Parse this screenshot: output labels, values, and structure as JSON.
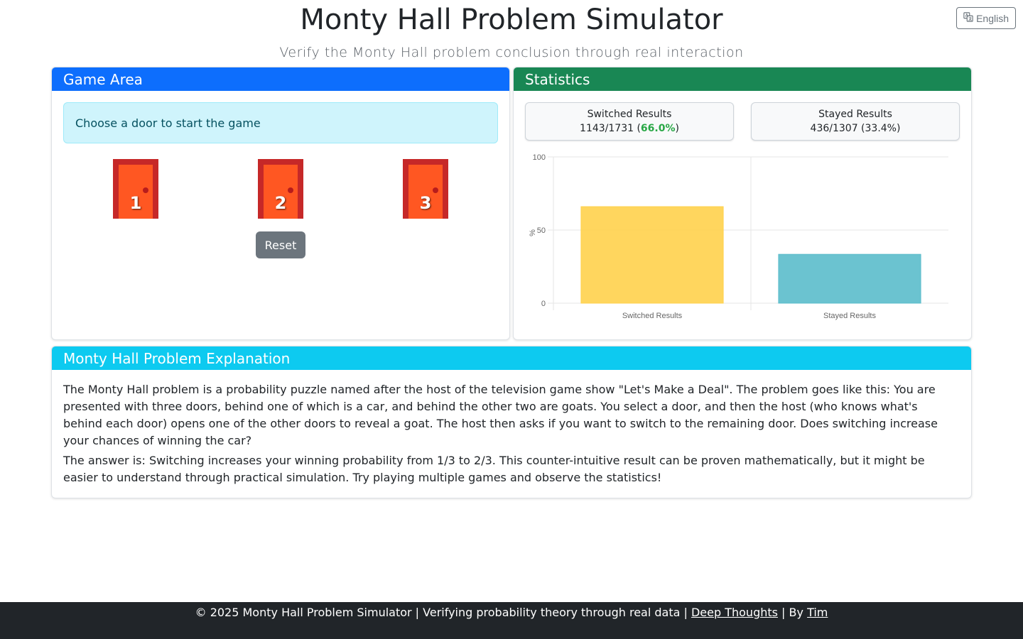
{
  "language_button": {
    "label": "English",
    "icon": "translate-icon"
  },
  "header": {
    "title": "Monty Hall Problem Simulator",
    "subtitle": "Verify the Monty Hall problem conclusion through real interaction"
  },
  "game": {
    "title": "Game Area",
    "status": "Choose a door to start the game",
    "doors": [
      {
        "number": "1"
      },
      {
        "number": "2"
      },
      {
        "number": "3"
      }
    ],
    "reset_label": "Reset"
  },
  "statistics": {
    "title": "Statistics",
    "switched": {
      "label": "Switched Results",
      "count": "1143/1731 (",
      "percent": "66.0%",
      "suffix": ")"
    },
    "stayed": {
      "label": "Stayed Results",
      "value": "436/1307 (33.4%)"
    }
  },
  "chart_data": {
    "type": "bar",
    "categories": [
      "Switched Results",
      "Stayed Results"
    ],
    "values": [
      66.0,
      33.4
    ],
    "colors": [
      "#ffd24d",
      "#5bbccb"
    ],
    "ylabel": "%",
    "ylim": [
      0,
      100
    ],
    "yticks": [
      0,
      50,
      100
    ],
    "grid": true
  },
  "explanation": {
    "title": "Monty Hall Problem Explanation",
    "paragraph1": "The Monty Hall problem is a probability puzzle named after the host of the television game show \"Let's Make a Deal\". The problem goes like this: You are presented with three doors, behind one of which is a car, and behind the other two are goats. You select a door, and then the host (who knows what's behind each door) opens one of the other doors to reveal a goat. The host then asks if you want to switch to the remaining door. Does switching increase your chances of winning the car?",
    "paragraph2": "The answer is: Switching increases your winning probability from 1/3 to 2/3. This counter-intuitive result can be proven mathematically, but it might be easier to understand through practical simulation. Try playing multiple games and observe the statistics!"
  },
  "footer": {
    "prefix": "© 2025 Monty Hall Problem Simulator | Verifying probability theory through real data | ",
    "link1": "Deep Thoughts",
    "middle": " | By ",
    "link2": "Tim"
  },
  "colors": {
    "game_header": "#0d6efd",
    "stats_header": "#198754",
    "explain_header": "#0dcaf0",
    "door_frame": "#c62828",
    "door_panel": "#ff5722",
    "footer_bg": "#212529"
  }
}
